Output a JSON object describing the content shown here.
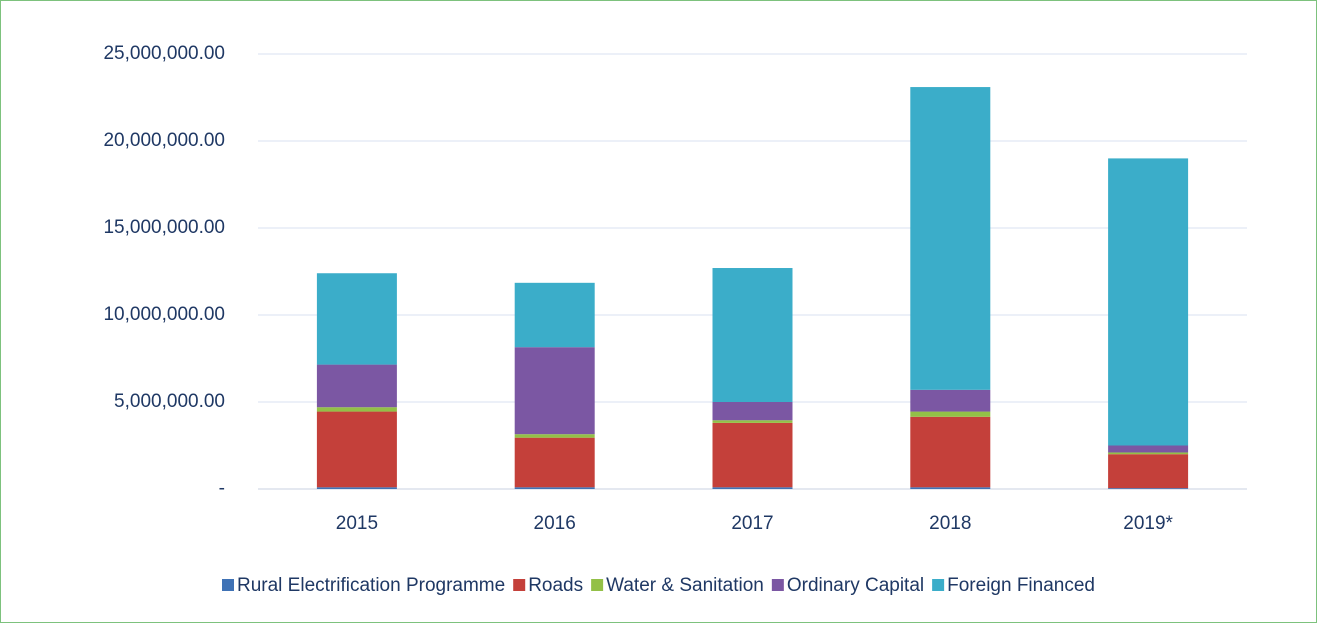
{
  "chart_data": {
    "type": "stacked_bar",
    "categories": [
      "2015",
      "2016",
      "2017",
      "2018",
      "2019*"
    ],
    "series": [
      {
        "name": "Rural Electrification Programme",
        "color": "#3f72b5",
        "values": [
          100000,
          100000,
          100000,
          100000,
          50000
        ]
      },
      {
        "name": "Roads",
        "color": "#c4403a",
        "values": [
          4350000,
          2850000,
          3700000,
          4050000,
          1950000
        ]
      },
      {
        "name": "Water & Sanitation",
        "color": "#93c047",
        "values": [
          250000,
          200000,
          150000,
          300000,
          100000
        ]
      },
      {
        "name": "Ordinary Capital",
        "color": "#7b57a3",
        "values": [
          2450000,
          5000000,
          1050000,
          1250000,
          400000
        ]
      },
      {
        "name": "Foreign Financed",
        "color": "#3badc9",
        "values": [
          5250000,
          3700000,
          7700000,
          17400000,
          16500000
        ]
      }
    ],
    "ylim": [
      0,
      25000000
    ],
    "yticks": [
      {
        "value": 0,
        "label": "-"
      },
      {
        "value": 5000000,
        "label": "5,000,000.00"
      },
      {
        "value": 10000000,
        "label": "10,000,000.00"
      },
      {
        "value": 15000000,
        "label": "15,000,000.00"
      },
      {
        "value": 20000000,
        "label": "20,000,000.00"
      },
      {
        "value": 25000000,
        "label": "25,000,000.00"
      }
    ],
    "grid": true,
    "legend": "bottom"
  }
}
